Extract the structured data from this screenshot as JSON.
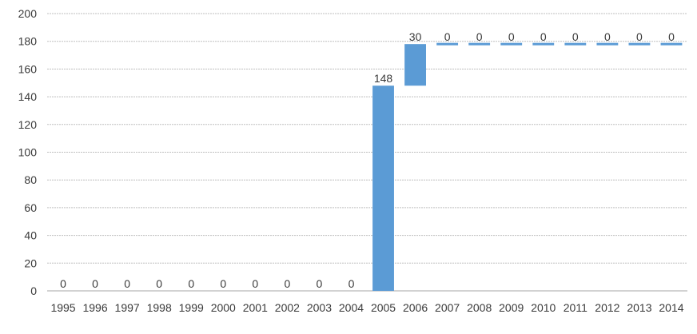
{
  "chart_data": {
    "type": "bar",
    "subtype": "waterfall",
    "title": "",
    "xlabel": "",
    "ylabel": "",
    "ylim": [
      0,
      200
    ],
    "yticks": [
      0,
      20,
      40,
      60,
      80,
      100,
      120,
      140,
      160,
      180,
      200
    ],
    "grid": true,
    "legend": "none",
    "categories": [
      "1995",
      "1996",
      "1997",
      "1998",
      "1999",
      "2000",
      "2001",
      "2002",
      "2003",
      "2004",
      "2005",
      "2006",
      "2007",
      "2008",
      "2009",
      "2010",
      "2011",
      "2012",
      "2013",
      "2014"
    ],
    "values": [
      0,
      0,
      0,
      0,
      0,
      0,
      0,
      0,
      0,
      0,
      148,
      30,
      0,
      0,
      0,
      0,
      0,
      0,
      0,
      0
    ],
    "data_labels": [
      "0",
      "0",
      "0",
      "0",
      "0",
      "0",
      "0",
      "0",
      "0",
      "0",
      "148",
      "30",
      "0",
      "0",
      "0",
      "0",
      "0",
      "0",
      "0",
      "0"
    ],
    "bar_color": "#5b9bd5",
    "grid_color": "#bfbfbf",
    "axis_text_color": "#3a3a3a"
  }
}
